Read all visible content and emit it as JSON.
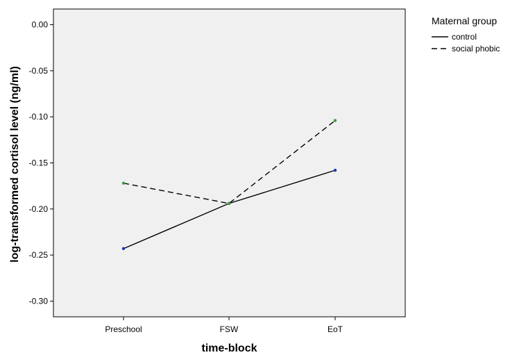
{
  "chart_data": {
    "type": "line",
    "title": "",
    "xlabel": "time-block",
    "ylabel": "log-transformed cortisol level (ng/ml)",
    "categories": [
      "Preschool",
      "FSW",
      "EoT"
    ],
    "ylim": [
      -0.317,
      0.017
    ],
    "yticks": [
      0.0,
      -0.05,
      -0.1,
      -0.15,
      -0.2,
      -0.25,
      -0.3
    ],
    "ytick_labels": [
      "0.00",
      "-0.05",
      "-0.10",
      "-0.15",
      "-0.20",
      "-0.25",
      "-0.30"
    ],
    "grid": false,
    "plot_background": "#f0f0f0",
    "legend": {
      "title": "Maternal group",
      "position": "top-right outside"
    },
    "series": [
      {
        "name": "control",
        "line_style": "solid",
        "line_color": "#000000",
        "marker_color": "#1c3aa9",
        "values": [
          -0.243,
          -0.194,
          -0.158
        ]
      },
      {
        "name": "social phobic",
        "line_style": "dashed",
        "line_color": "#000000",
        "marker_color": "#3e9a3e",
        "values": [
          -0.172,
          -0.194,
          -0.104
        ]
      }
    ]
  }
}
